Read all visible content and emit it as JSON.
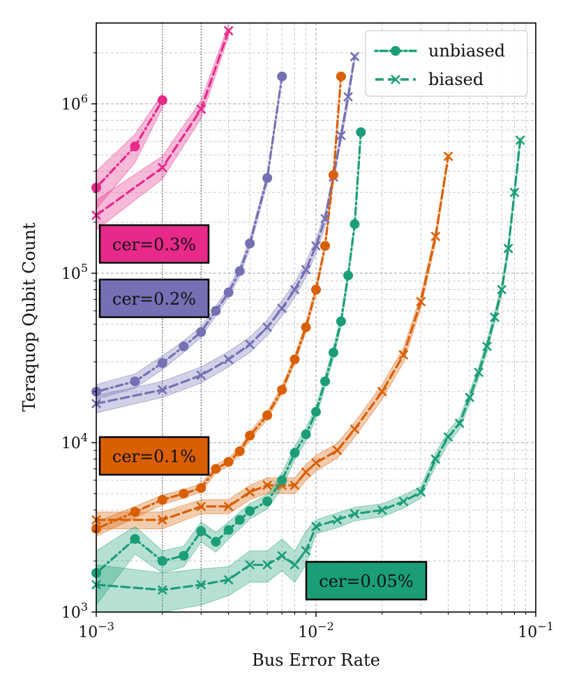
{
  "chart_data": {
    "type": "line",
    "xscale": "log",
    "yscale": "log",
    "xlabel": "Bus Error Rate",
    "ylabel": "Teraquop Qubit Count",
    "xlim": [
      0.001,
      0.1
    ],
    "ylim": [
      1000,
      3000000
    ],
    "xticks": [
      {
        "value": 0.001,
        "base": "10",
        "exp": "−3"
      },
      {
        "value": 0.01,
        "base": "10",
        "exp": "−2"
      },
      {
        "value": 0.1,
        "base": "10",
        "exp": "−1"
      }
    ],
    "yticks": [
      {
        "value": 1000,
        "base": "10",
        "exp": "3"
      },
      {
        "value": 10000,
        "base": "10",
        "exp": "4"
      },
      {
        "value": 100000,
        "base": "10",
        "exp": "5"
      },
      {
        "value": 1000000,
        "base": "10",
        "exp": "6"
      }
    ],
    "grid": true,
    "legend": {
      "position": "top-right",
      "entries": [
        {
          "label": "unbiased",
          "linestyle": "dotted",
          "marker": "circle"
        },
        {
          "label": "biased",
          "linestyle": "dashed",
          "marker": "x"
        }
      ]
    },
    "groups": [
      {
        "label": "cer=0.3%",
        "color": "#e7298a",
        "series": [
          {
            "name": "unbiased",
            "x": [
              0.001,
              0.0015,
              0.002
            ],
            "y": [
              320000,
              560000,
              1050000
            ],
            "band_lo": [
              240000,
              450000,
              950000
            ],
            "band_hi": [
              400000,
              660000,
              1150000
            ]
          },
          {
            "name": "biased",
            "x": [
              0.001,
              0.002,
              0.003,
              0.004
            ],
            "y": [
              220000,
              420000,
              930000,
              2700000
            ],
            "band_lo": [
              180000,
              360000,
              820000,
              2500000
            ],
            "band_hi": [
              270000,
              490000,
              1050000,
              2950000
            ]
          }
        ]
      },
      {
        "label": "cer=0.2%",
        "color": "#7570b3",
        "series": [
          {
            "name": "unbiased",
            "x": [
              0.001,
              0.0015,
              0.002,
              0.0025,
              0.003,
              0.0035,
              0.004,
              0.0045,
              0.005,
              0.006,
              0.007
            ],
            "y": [
              20000,
              23000,
              29500,
              37000,
              45000,
              60000,
              77000,
              103000,
              150000,
              365000,
              1450000
            ],
            "band_lo": [
              18000,
              21000,
              27000,
              34000,
              42000,
              56000,
              72000,
              96000,
              140000,
              340000,
              1400000
            ],
            "band_hi": [
              22000,
              25500,
              32500,
              40000,
              48500,
              64000,
              82000,
              110000,
              160000,
              390000,
              1500000
            ]
          },
          {
            "name": "biased",
            "x": [
              0.001,
              0.002,
              0.003,
              0.004,
              0.005,
              0.006,
              0.007,
              0.008,
              0.009,
              0.01,
              0.011,
              0.012,
              0.013,
              0.014,
              0.015
            ],
            "y": [
              17000,
              20500,
              25000,
              31000,
              38000,
              48000,
              62000,
              80000,
              105000,
              145000,
              210000,
              370000,
              650000,
              1100000,
              1900000
            ],
            "band_lo": [
              15000,
              18500,
              22500,
              28000,
              34000,
              43000,
              56000,
              72000,
              95000,
              130000,
              190000,
              340000,
              600000,
              1000000,
              1800000
            ],
            "band_hi": [
              19000,
              23000,
              28000,
              34500,
              42000,
              53000,
              69000,
              88000,
              116000,
              160000,
              230000,
              400000,
              700000,
              1200000,
              2000000
            ]
          }
        ]
      },
      {
        "label": "cer=0.1%",
        "color": "#d95f02",
        "series": [
          {
            "name": "unbiased",
            "x": [
              0.001,
              0.0015,
              0.002,
              0.0025,
              0.003,
              0.0035,
              0.004,
              0.0045,
              0.005,
              0.006,
              0.007,
              0.008,
              0.009,
              0.01,
              0.011,
              0.012,
              0.013
            ],
            "y": [
              3100,
              3900,
              4600,
              5000,
              5400,
              7000,
              7700,
              8900,
              11000,
              14500,
              20500,
              31000,
              48000,
              80000,
              145000,
              380000,
              1450000
            ],
            "band_lo": [
              2800,
              3600,
              4300,
              4700,
              5100,
              6600,
              7300,
              8400,
              10400,
              13700,
              19400,
              29300,
              45000,
              75000,
              137000,
              360000,
              1400000
            ],
            "band_hi": [
              3400,
              4200,
              4900,
              5300,
              5700,
              7400,
              8100,
              9400,
              11600,
              15300,
              21600,
              32700,
              51000,
              85000,
              153000,
              400000,
              1500000
            ]
          },
          {
            "name": "biased",
            "x": [
              0.001,
              0.002,
              0.003,
              0.004,
              0.005,
              0.006,
              0.007,
              0.008,
              0.009,
              0.01,
              0.0125,
              0.015,
              0.02,
              0.025,
              0.03,
              0.035,
              0.04
            ],
            "y": [
              3500,
              3500,
              4200,
              4200,
              5100,
              5600,
              5600,
              5600,
              6700,
              7600,
              9000,
              12000,
              20000,
              33000,
              68000,
              165000,
              490000
            ],
            "band_lo": [
              3100,
              3100,
              3800,
              3800,
              4600,
              5000,
              5000,
              5000,
              6000,
              6800,
              8100,
              10800,
              18000,
              29700,
              62000,
              152000,
              460000
            ],
            "band_hi": [
              3900,
              3900,
              4600,
              4600,
              5600,
              6200,
              6200,
              6200,
              7400,
              8400,
              9900,
              13200,
              22000,
              36300,
              74000,
              178000,
              520000
            ]
          }
        ]
      },
      {
        "label": "cer=0.05%",
        "color": "#1b9e77",
        "series": [
          {
            "name": "unbiased",
            "x": [
              0.001,
              0.0015,
              0.002,
              0.0025,
              0.003,
              0.0035,
              0.004,
              0.0045,
              0.005,
              0.006,
              0.007,
              0.008,
              0.009,
              0.01,
              0.011,
              0.012,
              0.013,
              0.014,
              0.015,
              0.016
            ],
            "y": [
              1700,
              2700,
              2000,
              2150,
              3000,
              2600,
              3050,
              3500,
              3950,
              4500,
              6000,
              8700,
              11200,
              15200,
              23000,
              34000,
              52000,
              97000,
              195000,
              680000
            ],
            "band_lo": [
              1100,
              2200,
              1700,
              1850,
              2600,
              2250,
              2700,
              3100,
              3550,
              4050,
              5400,
              7900,
              10200,
              14000,
              21200,
              31300,
              48000,
              90000,
              183000,
              650000
            ],
            "band_hi": [
              2300,
              3200,
              2300,
              2450,
              3400,
              2950,
              3400,
              3900,
              4350,
              4950,
              6600,
              9500,
              12200,
              16400,
              24800,
              36700,
              56000,
              104000,
              207000,
              710000
            ]
          },
          {
            "name": "biased",
            "x": [
              0.001,
              0.002,
              0.003,
              0.004,
              0.005,
              0.006,
              0.007,
              0.008,
              0.009,
              0.01,
              0.0125,
              0.015,
              0.02,
              0.025,
              0.03,
              0.035,
              0.04,
              0.045,
              0.05,
              0.055,
              0.06,
              0.065,
              0.07,
              0.075,
              0.08,
              0.085
            ],
            "y": [
              1450,
              1350,
              1450,
              1550,
              1900,
              1900,
              2150,
              1900,
              2300,
              3200,
              3500,
              3800,
              4000,
              4500,
              5100,
              8000,
              10800,
              13000,
              18500,
              26000,
              37000,
              55000,
              80000,
              140000,
              300000,
              610000
            ],
            "band_lo": [
              1000,
              1000,
              1100,
              1250,
              1500,
              1500,
              1750,
              1500,
              1900,
              2900,
              3150,
              3450,
              3650,
              4100,
              4700,
              7300,
              9900,
              12000,
              17000,
              24000,
              34000,
              51000,
              74000,
              130000,
              280000,
              580000
            ],
            "band_hi": [
              1900,
              1700,
              1800,
              1850,
              2300,
              2300,
              2700,
              2300,
              3000,
              3500,
              3850,
              4150,
              4350,
              4900,
              5500,
              8700,
              11700,
              14000,
              20000,
              28000,
              40000,
              59000,
              86000,
              150000,
              320000,
              640000
            ]
          }
        ]
      }
    ]
  }
}
